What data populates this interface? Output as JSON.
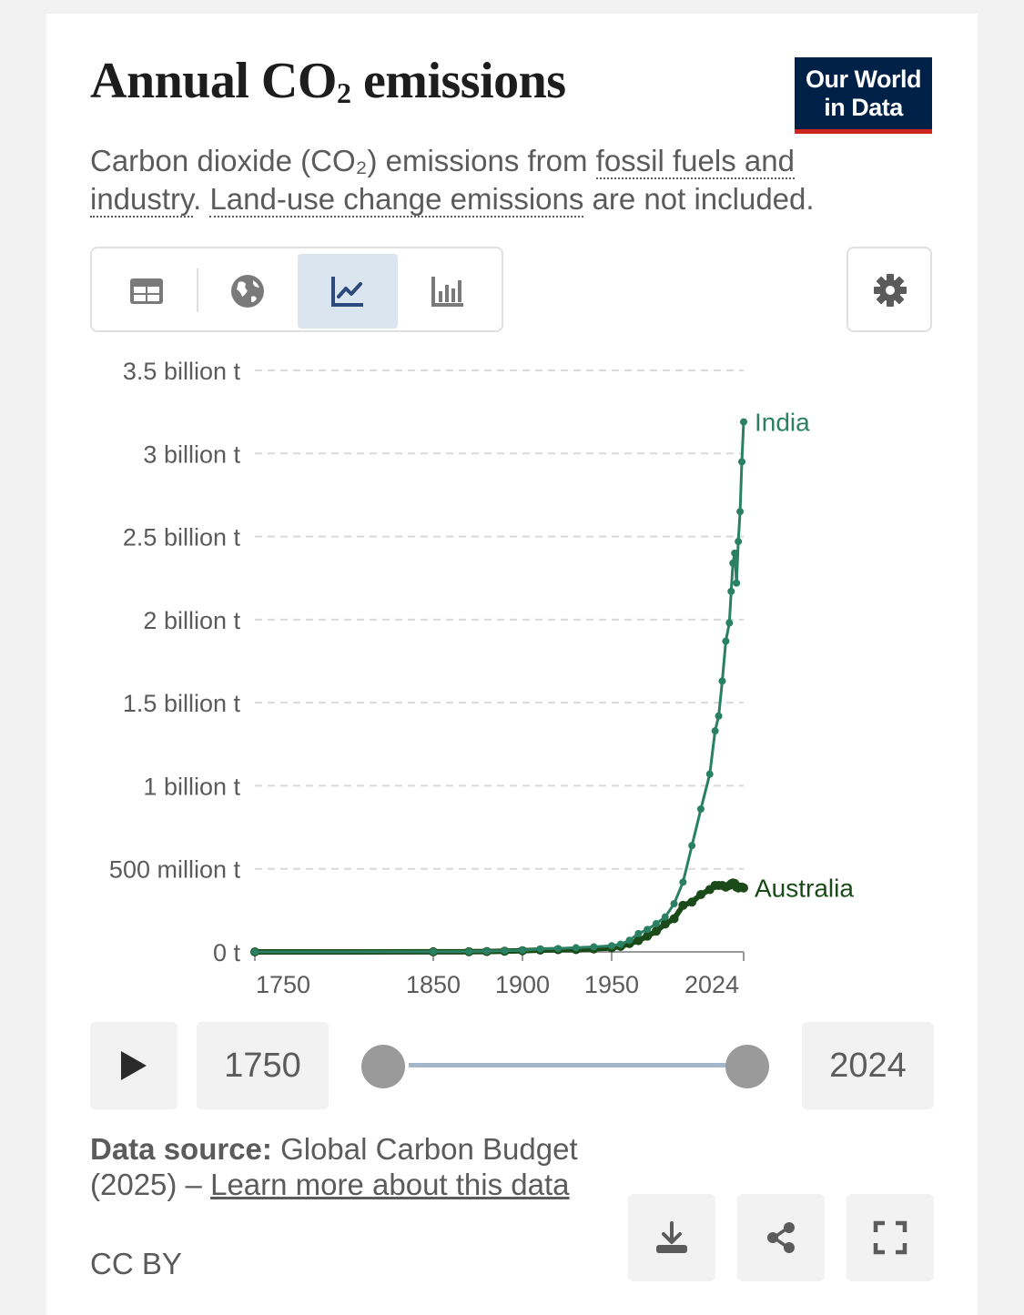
{
  "header": {
    "title_main": "Annual CO",
    "title_sub": "2",
    "title_rest": " emissions",
    "logo_line1": "Our World",
    "logo_line2": "in Data",
    "subtitle_pre": "Carbon dioxide (CO₂) emissions from ",
    "subtitle_link1": "fossil fuels and industry",
    "subtitle_mid": ". ",
    "subtitle_link2": "Land-use change emissions",
    "subtitle_post": " are not included."
  },
  "tabs": [
    {
      "icon": "table-icon",
      "active": false
    },
    {
      "icon": "globe-icon",
      "active": false
    },
    {
      "icon": "line-chart-icon",
      "active": true
    },
    {
      "icon": "bar-chart-icon",
      "active": false
    }
  ],
  "settings_icon": "gear-icon",
  "timeline": {
    "play_icon": "play-icon",
    "start_year": "1750",
    "end_year": "2024"
  },
  "footer": {
    "source_label": "Data source:",
    "source_text": " Global Carbon Budget (2025) – ",
    "learn_more": "Learn more about this data",
    "license": "CC BY"
  },
  "actions": [
    "download-icon",
    "share-icon",
    "fullscreen-icon"
  ],
  "colors": {
    "india": "#2a8062",
    "australia": "#1a4a18",
    "logo_bg": "#002147",
    "logo_accent": "#ce261e",
    "active_tab": "#dbe5f0"
  },
  "chart_data": {
    "type": "line",
    "title": "Annual CO₂ emissions",
    "y_tick_labels": [
      "0 t",
      "500 million t",
      "1 billion t",
      "1.5 billion t",
      "2 billion t",
      "2.5 billion t",
      "3 billion t",
      "3.5 billion t"
    ],
    "y_ticks": [
      0,
      0.5,
      1,
      1.5,
      2,
      2.5,
      3,
      3.5
    ],
    "ylim": [
      0,
      3.5
    ],
    "y_unit": "billion t",
    "x_tick_labels": [
      "1750",
      "1850",
      "1900",
      "1950",
      "2024"
    ],
    "xlim": [
      1750,
      2024
    ],
    "grid": true,
    "series": [
      {
        "name": "India",
        "x": [
          1750,
          1850,
          1870,
          1880,
          1890,
          1900,
          1910,
          1920,
          1930,
          1940,
          1950,
          1955,
          1960,
          1965,
          1970,
          1975,
          1980,
          1985,
          1990,
          1995,
          2000,
          2005,
          2008,
          2010,
          2012,
          2014,
          2016,
          2017,
          2018,
          2019,
          2020,
          2021,
          2022,
          2023,
          2024
        ],
        "y": [
          0,
          0.001,
          0.002,
          0.004,
          0.007,
          0.01,
          0.018,
          0.02,
          0.025,
          0.03,
          0.037,
          0.046,
          0.07,
          0.11,
          0.135,
          0.17,
          0.21,
          0.29,
          0.42,
          0.64,
          0.86,
          1.07,
          1.33,
          1.42,
          1.63,
          1.87,
          1.98,
          2.17,
          2.34,
          2.4,
          2.22,
          2.47,
          2.65,
          2.95,
          3.19
        ]
      },
      {
        "name": "Australia",
        "x": [
          1750,
          1850,
          1870,
          1880,
          1890,
          1900,
          1910,
          1920,
          1930,
          1940,
          1950,
          1955,
          1960,
          1965,
          1970,
          1975,
          1980,
          1985,
          1990,
          1995,
          2000,
          2005,
          2008,
          2010,
          2012,
          2014,
          2016,
          2017,
          2018,
          2019,
          2020,
          2021,
          2022,
          2023,
          2024
        ],
        "y": [
          0,
          0.0005,
          0.001,
          0.002,
          0.004,
          0.007,
          0.011,
          0.013,
          0.014,
          0.018,
          0.024,
          0.033,
          0.05,
          0.068,
          0.095,
          0.125,
          0.168,
          0.2,
          0.28,
          0.3,
          0.345,
          0.375,
          0.4,
          0.4,
          0.4,
          0.39,
          0.4,
          0.41,
          0.415,
          0.412,
          0.39,
          0.385,
          0.39,
          0.39,
          0.385
        ]
      }
    ]
  }
}
